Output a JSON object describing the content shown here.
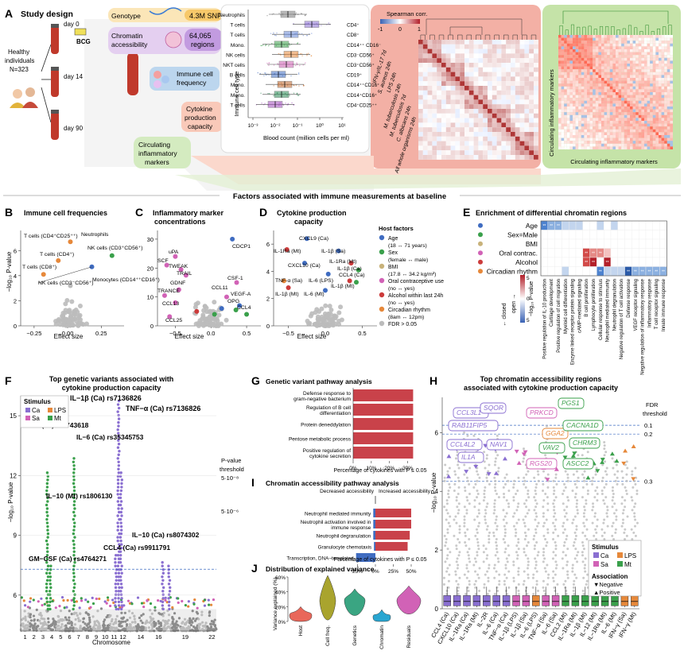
{
  "panelA": {
    "letter": "A",
    "title": "Study design",
    "cohort": [
      "Healthy",
      "individuals",
      "N=323"
    ],
    "days": [
      "day 0",
      "day 14",
      "day 90"
    ],
    "bcg": "BCG",
    "genotype": "Genotype",
    "snps": "4.3M SNPs",
    "chromatin": [
      "Chromatin",
      "accessibility"
    ],
    "regions": [
      "64,065",
      "regions"
    ],
    "immune": [
      "Immune cell",
      "frequency"
    ],
    "cytokine": [
      "Cytokine",
      "production",
      "capacity"
    ],
    "circulating": [
      "Circulating",
      "inflammatory",
      "markers"
    ],
    "cell_types": [
      "Neutrophils",
      "T cells",
      "T cells",
      "Mono.",
      "NK cells",
      "NKT cells",
      "B cells",
      "Mono.",
      "Mono.",
      "T cells"
    ],
    "markers": [
      "",
      "CD4⁺",
      "CD8⁺",
      "CD14⁺⁺ CD16⁻",
      "CD3⁻CD56⁺",
      "CD3⁺CD56⁺",
      "CD19⁺",
      "CD14⁺⁺CD16⁺",
      "CD14⁺CD16⁺",
      "CD4⁺CD25⁺⁺"
    ],
    "ylabel": "Immune cell type",
    "xlabel": "Blood count (million cells per ml)",
    "xticks": [
      "10⁻³",
      "10⁻²",
      "10⁻¹",
      "10⁰",
      "10¹"
    ],
    "spearman_title": "Spearman corr.",
    "spearman_ticks": [
      "-1",
      "0",
      "1"
    ],
    "cyto_labels": [
      "IFN-γ/IL-17 7d",
      "S. aureus 24h",
      "LPS 24h",
      "M. tuberculosis 24h",
      "M. tuberculosis 7d",
      "C. albicans 24h",
      "All whole organisms 24h"
    ],
    "circ_label": "Circulating inflammatory markers"
  },
  "baseline_title": "Factors associated with immune measurements at baseline",
  "panelB": {
    "letter": "B",
    "title": "Immune cell frequencies",
    "ylabel": "−log₁₀ P-value",
    "xlabel": "Effect size",
    "labels": [
      "T cells (CD4⁺CD25⁺⁺)",
      "Neutrophils",
      "T cells (CD4⁺)",
      "NK cells (CD3⁺CD56⁺)",
      "T cells (CD8⁺)",
      "Monocytes (CD14⁺⁺CD16⁺)",
      "NK cells (CD3⁻CD56⁺)"
    ],
    "xticks": [
      "−0.25",
      "0.00",
      "0.25"
    ],
    "yticks": [
      "0",
      "2",
      "4",
      "6"
    ]
  },
  "panelC": {
    "letter": "C",
    "title": [
      "Inflammatory marker",
      "concentrations"
    ],
    "xlabel": "Effect size",
    "labels": [
      "CDCP1",
      "uPA",
      "SCF",
      "TWEAK",
      "TRAIL",
      "GDNF",
      "CSF-1",
      "TRANCE",
      "CCL11",
      "VEGF-A",
      "CCL13",
      "OPG",
      "CCL4",
      "CCL25"
    ],
    "xticks": [
      "−0.5",
      "0.0",
      "0.5"
    ],
    "yticks": [
      "0",
      "10",
      "20",
      "30"
    ]
  },
  "panelD": {
    "letter": "D",
    "title": [
      "Cytokine production",
      "capacity"
    ],
    "xlabel": "Effect size",
    "labels": [
      "CXCL9 (Ca)",
      "IL-1Ra (Mt)",
      "IL-1β (Sa)",
      "CXCL10 (Ca)",
      "IL-1Ra (Mt)",
      "IL-1β (Ca)",
      "CCL4 (Ca)",
      "TNF-α (Sa)",
      "IL-6 (LPS)",
      "IL-1β (Mt)",
      "IL-1β (Mt)",
      "IL-6 (Mt)"
    ],
    "xticks": [
      "−0.5",
      "0.0",
      "0.5"
    ],
    "yticks": [
      "0",
      "2",
      "4",
      "6"
    ]
  },
  "legend_host": {
    "title": "Host factors",
    "items": [
      {
        "name": "Age",
        "range": "(18 ↔ 71 years)",
        "color": "#3f6cc1"
      },
      {
        "name": "Sex",
        "range": "(female ↔ male)",
        "color": "#3aa04b"
      },
      {
        "name": "BMI",
        "range": "(17.8 ↔ 34.2 kg/m²)",
        "color": "#c8b27a"
      },
      {
        "name": "Oral contraceptive use",
        "range": "(no ↔ yes)",
        "color": "#d162b6"
      },
      {
        "name": "Alcohol within last 24h",
        "range": "(no ↔ yes)",
        "color": "#cc3b3b"
      },
      {
        "name": "Circadian rhythm",
        "range": "(8am ↔ 12pm)",
        "color": "#e6883a"
      },
      {
        "name": "FDR > 0.05",
        "range": "",
        "color": "#bbbbbb"
      }
    ]
  },
  "panelE": {
    "letter": "E",
    "title": "Enrichment of differential chromatin regions",
    "rows": [
      "Age",
      "Sex=Male",
      "BMI",
      "Oral contrac.",
      "Alcohol",
      "Circadian rhythm"
    ],
    "cols": [
      "Positive regulation of IL-10 production",
      "Cartilage development",
      "Positive regulation of cell migration",
      "Myeloid cell differentiation",
      "Enzyme linked receptor protein signaling",
      "cAMP-mediated signaling",
      "B cell proliferation",
      "Lymphocyte proliferation",
      "Cellular response to stimulus",
      "Neutrophil mediated immunity",
      "Neutrophil degranulation",
      "Negative regulation of T cell activation",
      "Defense response",
      "VEGF receptor signaling",
      "Negative regulation of inflammatory response",
      "Inflammatory response",
      "T cell receptor signaling",
      "Innate immune response"
    ],
    "legend_open": "open →",
    "legend_closed": "← closed",
    "legend_label": "−log₁₀ P-value",
    "legend_ticks": [
      "5",
      "0",
      "5"
    ]
  },
  "panelF": {
    "letter": "F",
    "title": [
      "Top genetic variants associated with",
      "cytokine production capacity"
    ],
    "ylabel": "−log₁₀ P-value",
    "xlabel": "Chromosome",
    "legend_title": "Stimulus",
    "legend_items": [
      "Ca",
      "LPS",
      "Sa",
      "Mt"
    ],
    "annotations": [
      "IL−1β (Ca) rs7136826",
      "TNF−α (Ca) rs7136826",
      "IL−10 (Mt) rs5743618",
      "IL−6 (Ca) rs35345753",
      "IL−10 (Mt) rs1806130",
      "IL−10 (Ca) rs8074302",
      "CCL4 (Ca) rs9911791",
      "GM−CSF (Ca) rs4764271"
    ],
    "thresh_title": [
      "P-value",
      "threshold"
    ],
    "thresh1": "5·10⁻⁸",
    "thresh2": "5·10⁻⁶",
    "chromosomes": [
      "1",
      "2",
      "3",
      "4",
      "5",
      "6",
      "7",
      "8",
      "9",
      "10",
      "11",
      "12",
      "13",
      "14",
      "15",
      "16",
      "17",
      "18",
      "19",
      "20",
      "21",
      "22"
    ],
    "chrom_ticks": [
      "1",
      "2",
      "3",
      "4",
      "5",
      "6",
      "7",
      "8",
      "9",
      "10",
      "11",
      "12",
      "14",
      "16",
      "19",
      "22"
    ],
    "yticks": [
      "6",
      "9",
      "12",
      "15"
    ]
  },
  "panelG": {
    "letter": "G",
    "title": "Genetic variant pathway analysis",
    "chart_data": {
      "type": "bar",
      "categories": [
        "Defense response to gram-negative bacterium",
        "Regulation of B cell differentiation",
        "Protein deneddylation",
        "Pentose metabolic process",
        "Positive regulation of cytokine secretion"
      ],
      "values": [
        33,
        33,
        33,
        33,
        33
      ],
      "xlabel": "Percentage of cytokines with P ≤ 0.05",
      "xticks": [
        "0%",
        "10%",
        "20%",
        "30%"
      ]
    }
  },
  "panelI": {
    "letter": "I",
    "title": "Chromatin accessibility pathway analysis",
    "dec": "Decreased accessibility",
    "inc": "Increased accessibility",
    "chart_data": {
      "type": "bar",
      "categories": [
        "Neutrophil mediated immunity",
        "Neutrophil activation involved in immune response",
        "Neutrophil degranulation",
        "Granulocyte chemotaxis",
        "Transcription, DNA−templated"
      ],
      "decreased": [
        3,
        3,
        3,
        2,
        27
      ],
      "increased": [
        50,
        50,
        48,
        45,
        0
      ],
      "xlabel": "Percentage of cytokines with P ≤ 0.05",
      "xticks": [
        "25%",
        "0%",
        "25%",
        "50%"
      ]
    }
  },
  "panelJ": {
    "letter": "J",
    "title": "Distribution of explained variance",
    "ylabel": "Variance explained (%)",
    "chart_data": {
      "type": "violin",
      "categories": [
        "Host",
        "Cell freq.",
        "Genetics",
        "Chromatin",
        "Residuals"
      ],
      "medians": [
        8,
        28,
        28,
        6,
        28
      ],
      "ylim": [
        0,
        60
      ],
      "yticks": [
        "0%",
        "20%",
        "40%",
        "60%"
      ]
    }
  },
  "panelH": {
    "letter": "H",
    "title": [
      "Top chromatin accessibility regions",
      "associated with cytokine production capacity"
    ],
    "ylabel": "−log₁₀ P-value",
    "fdr_title": [
      "FDR",
      "threshold"
    ],
    "fdr": [
      "0.1",
      "0.2",
      "0.3"
    ],
    "genes": [
      "CCL3L1",
      "SQOR",
      "RAB11FIP5",
      "CCL4L2",
      "NAV1",
      "IL1A",
      "PRKCD",
      "GGA2",
      "RGS20",
      "PGS1",
      "CACNA1D",
      "CHRM3",
      "VAV2",
      "ASCC2"
    ],
    "xlabels": [
      "CCL4 (Ca)",
      "CXCL10 (Ca)",
      "IL−1Ra (Ca)",
      "IL−1Ra (Mt)",
      "IL−2R",
      "IL−6 (Ca)",
      "TNF−α (Ca)",
      "IL−1β (LPS)",
      "IL−1β (Sa)",
      "IL−6 (LPS)",
      "TNF−α (Sa)",
      "IL−6 (Sa)",
      "CCL2 (Mt)",
      "IL−1Ra (Mt)",
      "IL−1β (Mt)",
      "IL−12 (Mt)",
      "IL−1Ra (Mt)",
      "IL−6 (Mt)",
      "IFN−γ (Sa)",
      "IFN−γ (Mt)"
    ],
    "legend_stim": "Stimulus",
    "legend_assoc": "Association",
    "assoc_items": [
      "▼Negative",
      "▲Positive"
    ],
    "yticks": [
      "0",
      "2",
      "4",
      "6"
    ]
  }
}
